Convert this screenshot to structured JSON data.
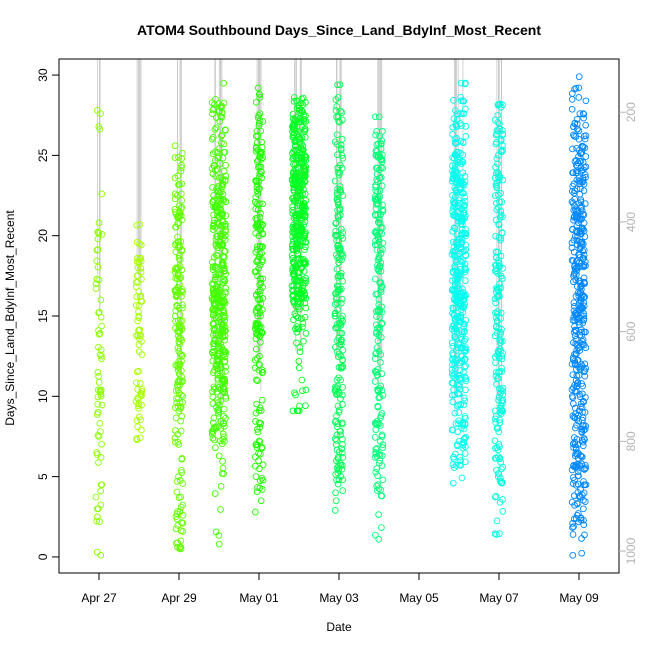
{
  "chart_data": {
    "type": "scatter",
    "title": "ATOM4 Southbound Days_Since_Land_BdyInf_Most_Recent",
    "xlabel": "Date",
    "ylabel": "Days_Since_Land_BdyInf_Most_Recent",
    "xlim": [
      "2023-04-26",
      "2023-05-10"
    ],
    "ylim": [
      -1,
      31
    ],
    "x_ticks": [
      {
        "date": "2023-04-27",
        "label": "Apr 27"
      },
      {
        "date": "2023-04-29",
        "label": "Apr 29"
      },
      {
        "date": "2023-05-01",
        "label": "May 01"
      },
      {
        "date": "2023-05-03",
        "label": "May 03"
      },
      {
        "date": "2023-05-05",
        "label": "May 05"
      },
      {
        "date": "2023-05-07",
        "label": "May 07"
      },
      {
        "date": "2023-05-09",
        "label": "May 09"
      }
    ],
    "y_ticks": [
      0,
      5,
      10,
      15,
      20,
      25,
      30
    ],
    "y2_axis": {
      "ticks": [
        200,
        400,
        600,
        800,
        1000
      ],
      "range": [
        103,
        1040
      ],
      "reversed": true,
      "color": "#b3b3b3"
    },
    "depth_line_color": "#c8c8c8",
    "marker": "open-circle",
    "grid": false,
    "legend": "none",
    "series": [
      {
        "date": "2023-04-27",
        "color": "#8cff00",
        "min": 0,
        "max": 28,
        "density": "sparse",
        "depth_lines": [
          {
            "y_from": 31,
            "y_to": 14
          }
        ],
        "sample_values": [
          0.1,
          0.3,
          2.2,
          2.5,
          3.0,
          4.1,
          4.5,
          6.2,
          6.5,
          7.5,
          7.8,
          9.0,
          9.5,
          10.4,
          12.5,
          12.9,
          14.1,
          15.2,
          16.0,
          17.3,
          19.1,
          19.8,
          20.2,
          20.8,
          22.6,
          26.8,
          27.6,
          27.8
        ]
      },
      {
        "date": "2023-04-28",
        "color": "#a6ff00",
        "min": 7,
        "max": 21,
        "density": "sparse",
        "depth_lines": [
          {
            "y_from": 31,
            "y_to": 16
          }
        ],
        "sample_values": [
          7.3,
          7.9,
          9.9,
          10.3,
          10.8,
          12.6,
          13.8,
          15.0,
          16.2,
          17.3,
          18.0,
          18.6,
          19.5,
          20.7
        ]
      },
      {
        "date": "2023-04-29",
        "color": "#66ff00",
        "min": 0.5,
        "max": 25.6,
        "density": "medium",
        "depth_lines": [
          {
            "y_from": 31,
            "y_to": 9
          }
        ],
        "sample_values": [
          0.5,
          0.6,
          1.0,
          2.5,
          2.8,
          4.7,
          5.0,
          9.3,
          10.0,
          11.0,
          11.6,
          12.2,
          12.8,
          13.6,
          14.0,
          15.0,
          15.5,
          16.2,
          16.6,
          17.5,
          18.0,
          19.0,
          19.6,
          20.8,
          21.5,
          22.6,
          23.2,
          23.6,
          24.8,
          25.6
        ]
      },
      {
        "date": "2023-04-30",
        "color": "#44ff00",
        "min": 0.8,
        "max": 30,
        "density": "dense",
        "depth_lines": [
          {
            "y_from": 31,
            "y_to": 8
          }
        ],
        "sample_values": [
          0.8,
          6.8,
          7.2,
          7.8,
          8.0,
          10.0,
          10.5,
          11.0,
          11.8,
          12.2,
          12.8,
          13.5,
          14.0,
          14.6,
          15.0,
          15.8,
          16.4,
          17.0,
          17.6,
          18.2,
          18.8,
          19.4,
          20.0,
          20.6,
          21.2,
          21.8,
          22.5,
          23.0,
          24.0,
          25.2,
          26.2,
          28.5,
          29.5
        ]
      },
      {
        "date": "2023-05-01",
        "color": "#22ff00",
        "min": 2.8,
        "max": 29.2,
        "density": "medium",
        "depth_lines": [
          {
            "y_from": 31,
            "y_to": 9
          }
        ],
        "sample_values": [
          2.8,
          3.5,
          5.0,
          6.0,
          7.0,
          8.3,
          11.5,
          12.5,
          13.8,
          14.5,
          15.2,
          16.0,
          16.6,
          17.3,
          18.5,
          19.3,
          20.0,
          20.8,
          21.4,
          22.0,
          22.8,
          23.4,
          24.0,
          24.7,
          25.5,
          26.2,
          27.0,
          27.6,
          28.6,
          29.2
        ]
      },
      {
        "date": "2023-05-02",
        "color": "#00ff22",
        "min": 9.1,
        "max": 28.6,
        "density": "dense",
        "depth_lines": [
          {
            "y_from": 31,
            "y_to": 12.6
          }
        ],
        "sample_values": [
          9.1,
          14.2,
          15.0,
          15.8,
          16.5,
          17.2,
          18.0,
          18.6,
          19.3,
          20.0,
          20.6,
          21.2,
          21.8,
          22.4,
          23.0,
          23.6,
          24.2,
          24.8,
          25.4,
          26.0,
          26.6,
          27.2,
          27.8,
          28.3,
          28.6
        ]
      },
      {
        "date": "2023-05-03",
        "color": "#00ff55",
        "min": 2.9,
        "max": 29.4,
        "density": "medium",
        "depth_lines": [
          {
            "y_from": 31,
            "y_to": 11.2
          }
        ],
        "sample_values": [
          2.9,
          3.5,
          4.0,
          4.8,
          5.5,
          6.2,
          7.0,
          7.6,
          8.4,
          9.0,
          11.8,
          12.5,
          13.5,
          14.3,
          15.0,
          15.8,
          16.5,
          17.5,
          18.5,
          19.2,
          20.0,
          20.8,
          21.6,
          22.5,
          23.4,
          24.2,
          25.0,
          26.0,
          27.2,
          28.6,
          29.4
        ]
      },
      {
        "date": "2023-05-04",
        "color": "#00ff77",
        "min": 1.1,
        "max": 27.4,
        "density": "medium",
        "depth_lines": [
          {
            "y_from": 31,
            "y_to": 8.5
          }
        ],
        "sample_values": [
          1.1,
          3.8,
          4.5,
          5.5,
          6.5,
          7.5,
          8.8,
          10.3,
          11.5,
          12.8,
          14.0,
          15.3,
          16.5,
          17.8,
          18.9,
          19.6,
          20.5,
          21.3,
          22.0,
          22.8,
          23.5,
          24.2,
          25.0,
          25.7,
          26.5,
          27.4
        ]
      },
      {
        "date": "2023-05-06",
        "color": "#00ffee",
        "min": 4.6,
        "max": 29.5,
        "density": "dense",
        "depth_lines": [
          {
            "y_from": 31,
            "y_to": 8.5
          }
        ],
        "sample_values": [
          4.6,
          5.7,
          6.0,
          6.4,
          8.3,
          9.5,
          10.4,
          11.2,
          12.3,
          13.0,
          14.0,
          14.8,
          15.6,
          16.4,
          17.2,
          18.0,
          18.8,
          19.6,
          20.4,
          21.2,
          22.0,
          22.8,
          23.6,
          24.4,
          25.2,
          26.0,
          26.8,
          27.6,
          28.4,
          29.5
        ]
      },
      {
        "date": "2023-05-07",
        "color": "#00ffdd",
        "min": 1.4,
        "max": 28.2,
        "density": "medium",
        "depth_lines": [
          {
            "y_from": 31,
            "y_to": 8.5
          }
        ],
        "sample_values": [
          1.4,
          3.4,
          4.6,
          4.9,
          5.9,
          8.0,
          9.0,
          10.2,
          11.5,
          12.8,
          14.0,
          15.2,
          16.5,
          17.8,
          19.0,
          20.2,
          21.3,
          22.5,
          23.6,
          24.8,
          26.0,
          27.2,
          28.0,
          28.2
        ]
      },
      {
        "date": "2023-05-09",
        "color": "#0088ff",
        "min": 0.1,
        "max": 29.9,
        "density": "dense",
        "depth_lines": [],
        "sample_values": [
          0.1,
          2.0,
          2.4,
          3.0,
          3.8,
          4.5,
          5.6,
          6.4,
          7.3,
          8.2,
          9.0,
          10.0,
          10.8,
          11.6,
          12.4,
          13.2,
          14.0,
          14.8,
          15.6,
          16.4,
          17.2,
          18.0,
          18.8,
          19.6,
          20.4,
          21.2,
          22.0,
          22.8,
          23.6,
          24.4,
          25.2,
          26.0,
          26.8,
          27.6,
          28.4,
          29.2,
          29.9
        ]
      }
    ]
  }
}
